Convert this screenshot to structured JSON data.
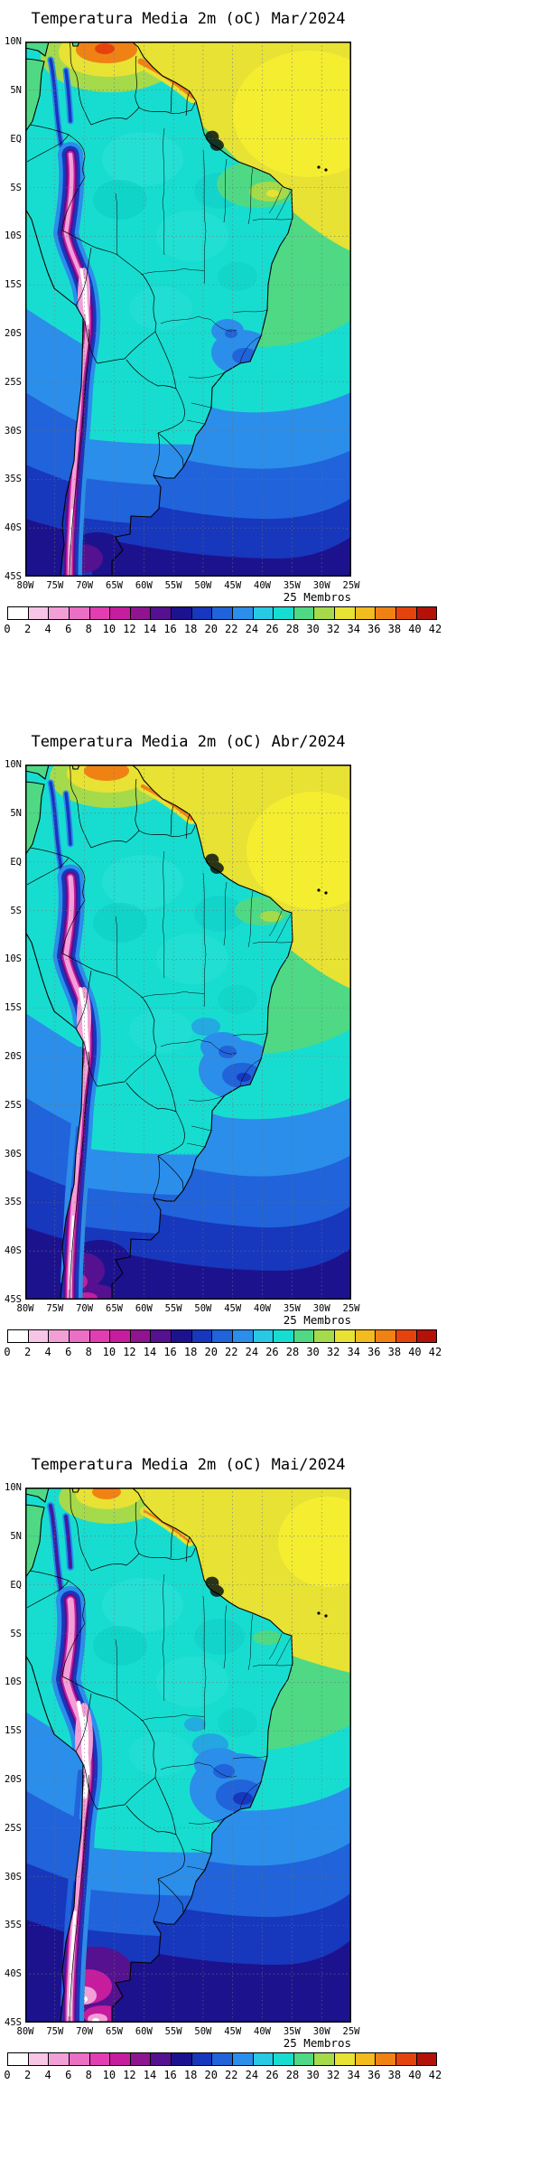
{
  "panels": [
    {
      "id": "mar-2024",
      "title": "Temperatura Media 2m (oC) Mar/2024",
      "members_label": "25 Membros"
    },
    {
      "id": "abr-2024",
      "title": "Temperatura Media 2m (oC) Abr/2024",
      "members_label": "25 Membros"
    },
    {
      "id": "mai-2024",
      "title": "Temperatura Media 2m (oC) Mai/2024",
      "members_label": "25 Membros"
    }
  ],
  "axes": {
    "lat_ticks": [
      "10N",
      "5N",
      "EQ",
      "5S",
      "10S",
      "15S",
      "20S",
      "25S",
      "30S",
      "35S",
      "40S",
      "45S"
    ],
    "lon_ticks": [
      "80W",
      "75W",
      "70W",
      "65W",
      "60W",
      "55W",
      "50W",
      "45W",
      "40W",
      "35W",
      "30W",
      "25W"
    ]
  },
  "colorbar": {
    "tick_values": [
      0,
      2,
      4,
      6,
      8,
      10,
      12,
      14,
      16,
      18,
      20,
      22,
      24,
      26,
      28,
      30,
      32,
      34,
      36,
      38,
      40,
      42
    ],
    "colors": [
      "#ffffff",
      "#f7c5e6",
      "#f29fd7",
      "#ec6fc6",
      "#e23eb2",
      "#c51d9e",
      "#8f1590",
      "#55118f",
      "#1d128e",
      "#1737bd",
      "#2063da",
      "#2b8eea",
      "#27c9e4",
      "#17ddd0",
      "#4fd984",
      "#a5da4b",
      "#e7e233",
      "#f2bb1e",
      "#f08214",
      "#e5430e",
      "#b31209"
    ]
  },
  "chart_data": {
    "type": "heatmap",
    "subtype": "ensemble-mean-2m-temperature-geographic-maps",
    "variable": "Temperatura Media 2m",
    "units": "oC",
    "ensemble_members": 25,
    "ensemble_label": "25 Membros",
    "region": "South America",
    "lon_range": [
      "80W",
      "25W"
    ],
    "lat_range": [
      "45S",
      "10N"
    ],
    "grid_interval_deg": 5,
    "grid_style": "dashed",
    "contour_interval_oC": 2,
    "levels": [
      0,
      2,
      4,
      6,
      8,
      10,
      12,
      14,
      16,
      18,
      20,
      22,
      24,
      26,
      28,
      30,
      32,
      34,
      36,
      38,
      40,
      42
    ],
    "panels": [
      {
        "month": "Mar/2024",
        "title": "Temperatura Media 2m (oC) Mar/2024",
        "regional_estimates_oC": {
          "amazon_basin": 26,
          "ne_brazil_coast": 29,
          "venezuela_colombia_north": 34,
          "venezuela_hot_core": 37,
          "guiana_coast": 33,
          "andes_altiplano": 4,
          "andes_white_core": 1,
          "se_brazil_highlands": 23,
          "pampas_argentina": 22,
          "patagonia_43s": 14,
          "tropical_atlantic": 29,
          "atlantic_30s": 22,
          "atlantic_42s": 17,
          "pacific_peru_coast": 24
        }
      },
      {
        "month": "Abr/2024",
        "title": "Temperatura Media 2m (oC) Abr/2024",
        "regional_estimates_oC": {
          "amazon_basin": 26,
          "ne_brazil_coast": 28,
          "venezuela_colombia_north": 33,
          "guiana_coast": 32,
          "andes_altiplano": 3,
          "andes_white_core": 1,
          "se_brazil_highlands": 21,
          "pampas_argentina": 19,
          "patagonia_43s": 11,
          "patagonia_cold_spots": 9,
          "tropical_atlantic": 29,
          "atlantic_30s": 21,
          "atlantic_42s": 15,
          "pacific_peru_coast": 23
        }
      },
      {
        "month": "Mai/2024",
        "title": "Temperatura Media 2m (oC) Mai/2024",
        "regional_estimates_oC": {
          "amazon_basin": 26,
          "ne_brazil_coast": 27,
          "venezuela_colombia_north": 32,
          "guiana_coast": 31,
          "andes_altiplano": 2,
          "andes_white_core": 0,
          "se_brazil_highlands": 20,
          "pampas_argentina": 16,
          "patagonia_43s": 8,
          "patagonia_cold_spots": 4,
          "tropical_atlantic": 28,
          "atlantic_30s": 20,
          "atlantic_42s": 14,
          "pacific_peru_coast": 21
        }
      }
    ]
  }
}
